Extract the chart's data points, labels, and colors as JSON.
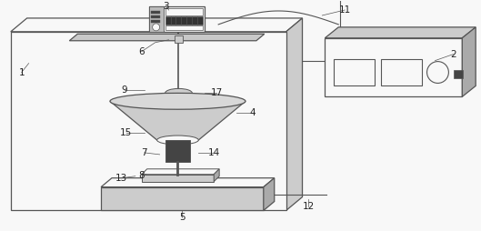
{
  "figsize": [
    5.29,
    2.54
  ],
  "dpi": 100,
  "line_color": "#555555",
  "fill_gray": "#cccccc",
  "fill_white": "#f8f8f8",
  "fill_dark": "#444444",
  "fill_mid": "#aaaaaa"
}
